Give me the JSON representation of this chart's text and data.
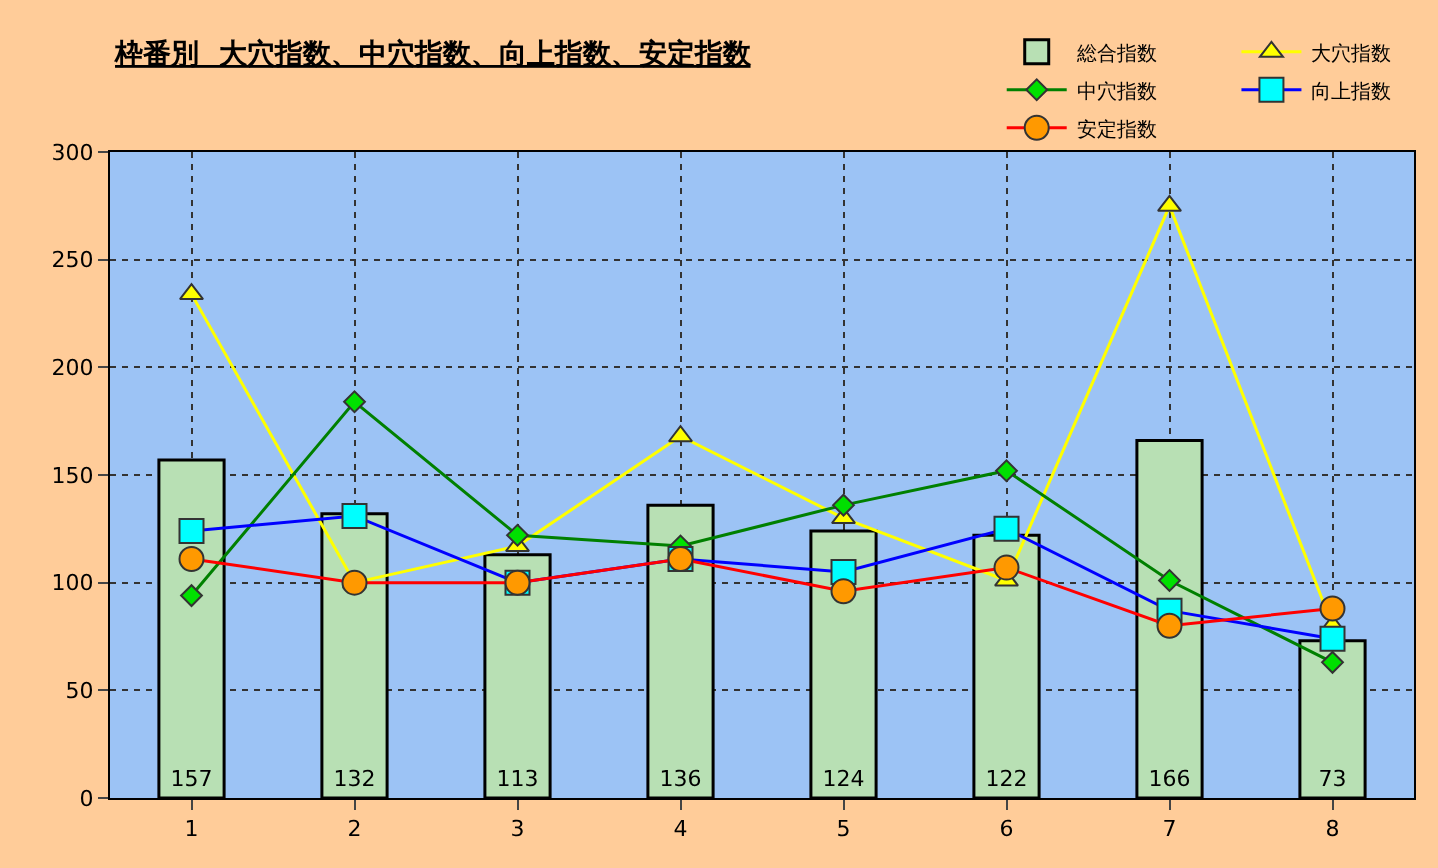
{
  "chart_data": {
    "type": "bar",
    "title": "枠番別  大穴指数、中穴指数、向上指数、安定指数",
    "categories": [
      "1",
      "2",
      "3",
      "4",
      "5",
      "6",
      "7",
      "8"
    ],
    "series": [
      {
        "name": "総合指数",
        "color": "#b8e0b4",
        "values": [
          157,
          132,
          113,
          136,
          124,
          122,
          166,
          73
        ],
        "value_labels": [
          "157",
          "132",
          "113",
          "136",
          "124",
          "122",
          "166",
          "73"
        ]
      },
      {
        "name": "大穴指数",
        "type": "line",
        "color": "#ffff00",
        "marker": "triangle",
        "values": [
          234,
          100,
          117,
          168,
          130,
          101,
          275,
          80
        ]
      },
      {
        "name": "中穴指数",
        "type": "line",
        "color": "#008000",
        "marker": "diamond",
        "values": [
          94,
          184,
          122,
          117,
          136,
          152,
          101,
          63
        ]
      },
      {
        "name": "向上指数",
        "type": "line",
        "color": "#0000ff",
        "marker": "square",
        "values": [
          124,
          131,
          100,
          111,
          105,
          125,
          87,
          74
        ]
      },
      {
        "name": "安定指数",
        "type": "line",
        "color": "#ff0000",
        "marker": "circle",
        "values": [
          111,
          100,
          100,
          111,
          96,
          107,
          80,
          88
        ]
      }
    ],
    "ylim": [
      0,
      300
    ],
    "yticks": [
      0,
      50,
      100,
      150,
      200,
      250,
      300
    ],
    "grid": true,
    "legend": "top right"
  }
}
